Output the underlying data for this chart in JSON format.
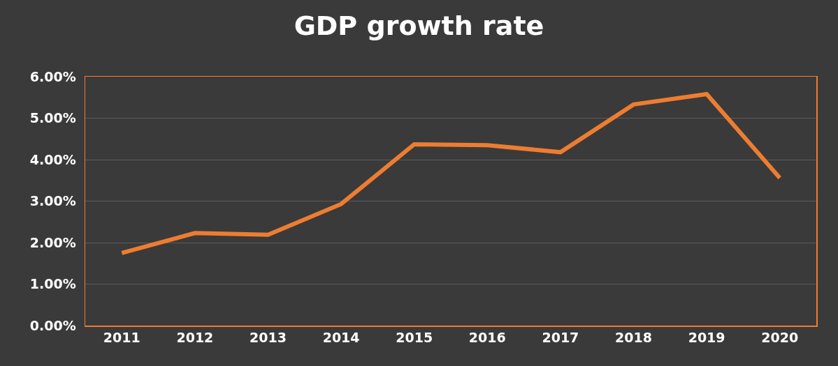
{
  "chart_data": {
    "type": "line",
    "title": "GDP growth rate",
    "categories": [
      "2011",
      "2012",
      "2013",
      "2014",
      "2015",
      "2016",
      "2017",
      "2018",
      "2019",
      "2020"
    ],
    "series": [
      {
        "color": "#ed7d31",
        "values": [
          1.75,
          2.23,
          2.19,
          2.93,
          4.37,
          4.35,
          4.18,
          5.33,
          5.58,
          3.56
        ]
      }
    ],
    "ylim": [
      0,
      6
    ],
    "yticks": [
      {
        "value": 0,
        "label": "0.00%"
      },
      {
        "value": 1,
        "label": "1.00%"
      },
      {
        "value": 2,
        "label": "2.00%"
      },
      {
        "value": 3,
        "label": "3.00%"
      },
      {
        "value": 4,
        "label": "4.00%"
      },
      {
        "value": 5,
        "label": "5.00%"
      },
      {
        "value": 6,
        "label": "6.00%"
      }
    ],
    "grid": "y",
    "marker": "none",
    "line_style": "solid"
  }
}
